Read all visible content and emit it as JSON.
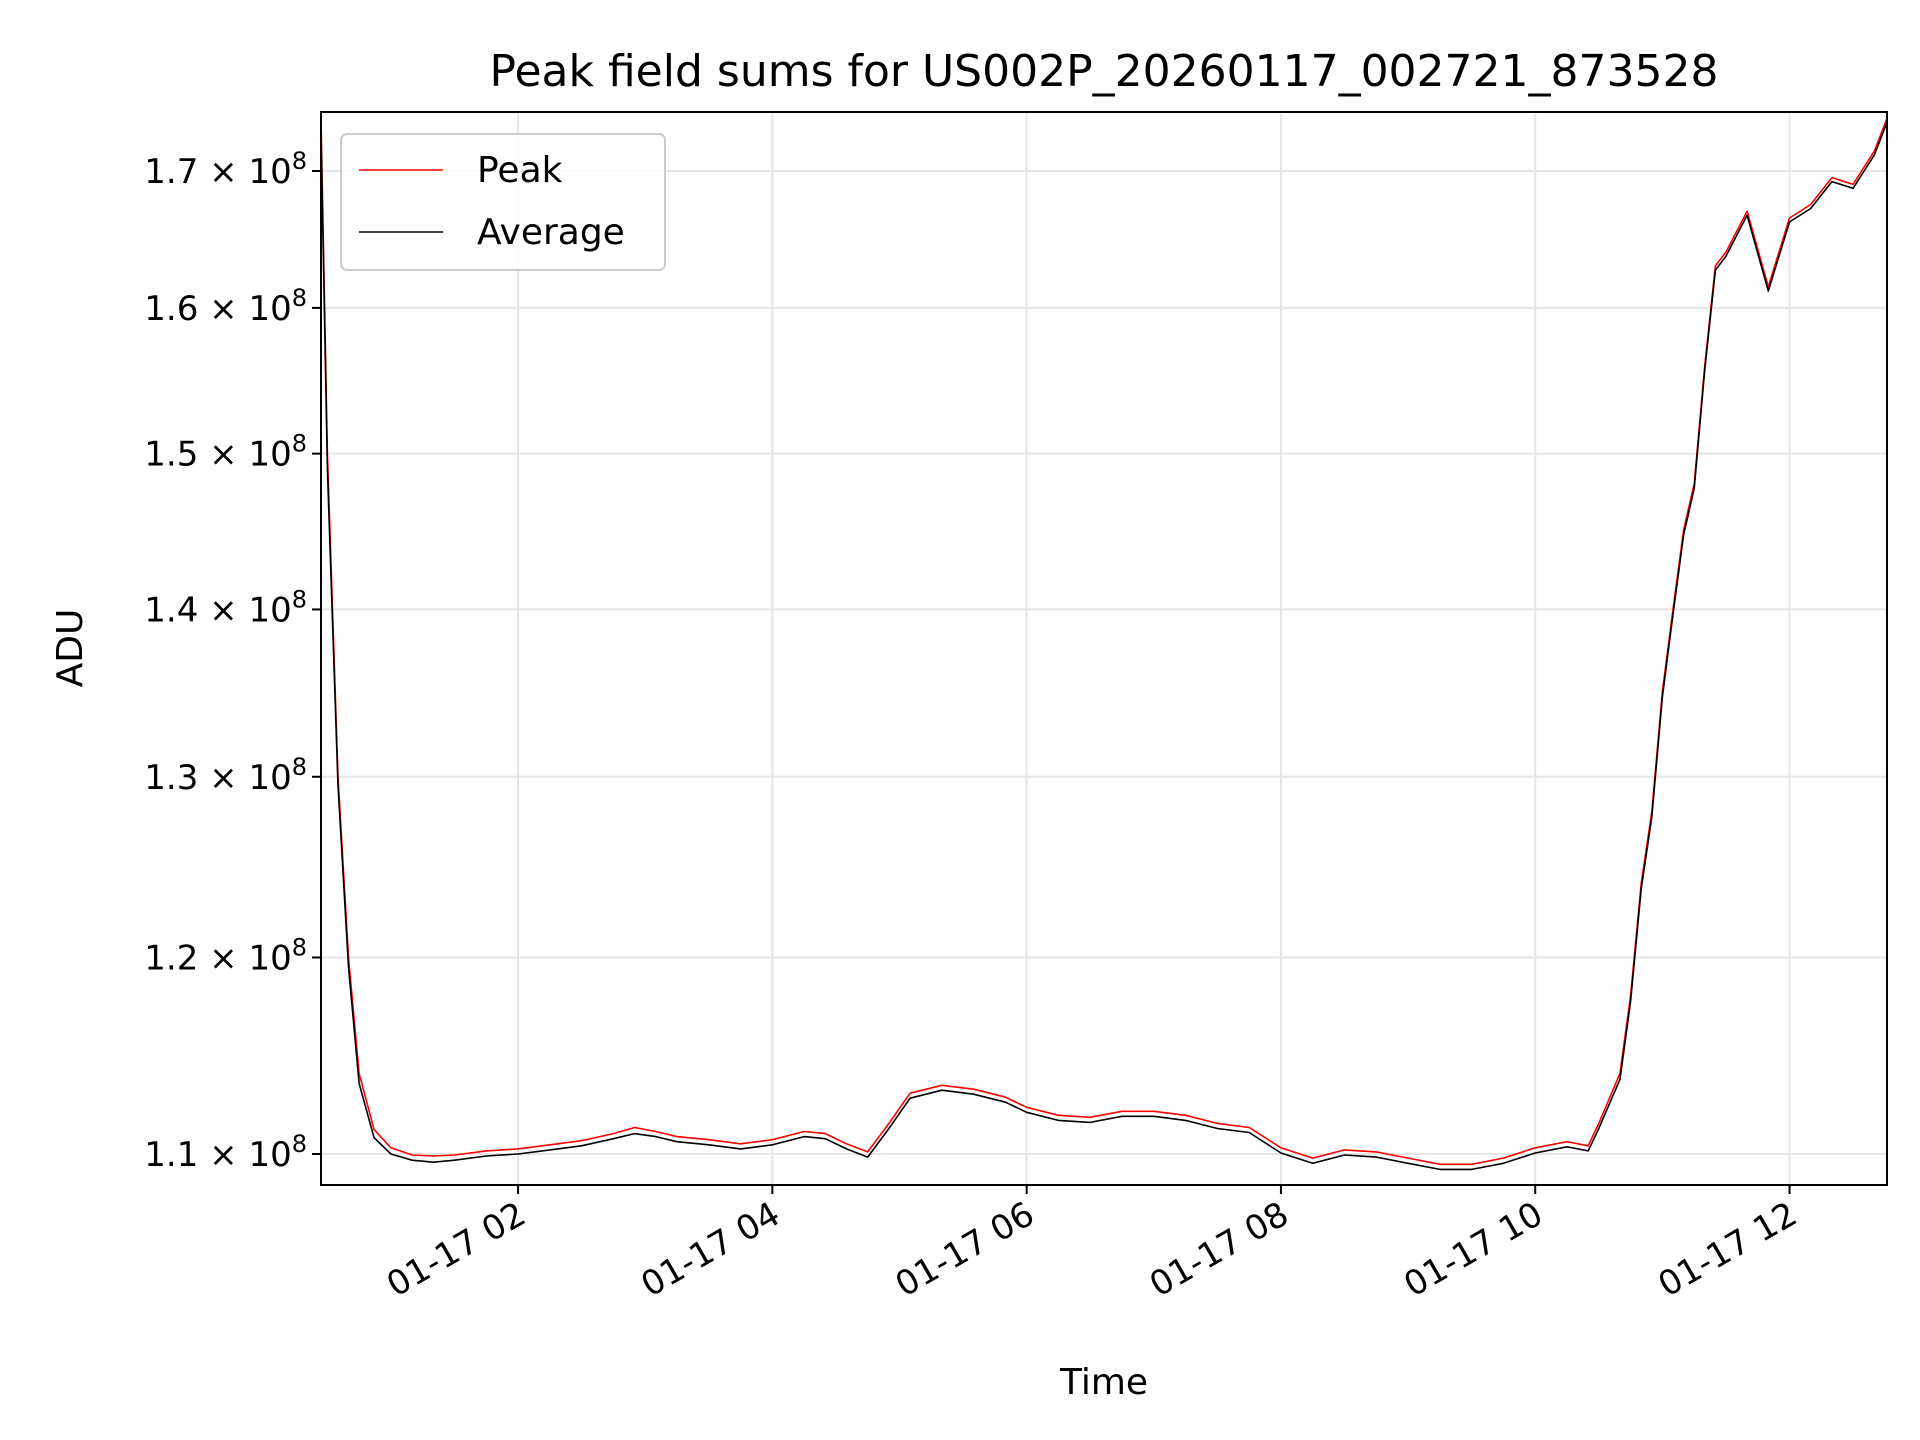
{
  "chart_data": {
    "type": "line",
    "title": "Peak field sums for US002P_20260117_002721_873528",
    "xlabel": "Time",
    "ylabel": "ADU",
    "x_ticks": [
      "01-17 02",
      "01-17 04",
      "01-17 06",
      "01-17 08",
      "01-17 10",
      "01-17 12"
    ],
    "y_ticks": [
      {
        "value": 110000000,
        "mantissa": "1.1",
        "base": "10",
        "exp": "8"
      },
      {
        "value": 120000000,
        "mantissa": "1.2",
        "base": "10",
        "exp": "8"
      },
      {
        "value": 130000000,
        "mantissa": "1.3",
        "base": "10",
        "exp": "8"
      },
      {
        "value": 140000000,
        "mantissa": "1.4",
        "base": "10",
        "exp": "8"
      },
      {
        "value": 150000000,
        "mantissa": "1.5",
        "base": "10",
        "exp": "8"
      },
      {
        "value": 160000000,
        "mantissa": "1.6",
        "base": "10",
        "exp": "8"
      },
      {
        "value": 170000000,
        "mantissa": "1.7",
        "base": "10",
        "exp": "8"
      }
    ],
    "y_scale": "log",
    "xlim": [
      "2026-01-17 00:27",
      "2026-01-17 12:46"
    ],
    "ylim": [
      108500000,
      174500000
    ],
    "grid": true,
    "legend_position": "upper-left",
    "series": [
      {
        "name": "Peak",
        "color": "#ff0000",
        "points": [
          [
            "2026-01-17 00:27",
            174000000
          ],
          [
            "2026-01-17 00:30",
            150000000
          ],
          [
            "2026-01-17 00:35",
            130000000
          ],
          [
            "2026-01-17 00:40",
            120000000
          ],
          [
            "2026-01-17 00:45",
            114000000
          ],
          [
            "2026-01-17 00:52",
            111200000
          ],
          [
            "2026-01-17 01:00",
            110300000
          ],
          [
            "2026-01-17 01:10",
            109950000
          ],
          [
            "2026-01-17 01:20",
            109900000
          ],
          [
            "2026-01-17 01:30",
            109950000
          ],
          [
            "2026-01-17 01:45",
            110150000
          ],
          [
            "2026-01-17 02:00",
            110250000
          ],
          [
            "2026-01-17 02:15",
            110450000
          ],
          [
            "2026-01-17 02:30",
            110650000
          ],
          [
            "2026-01-17 02:45",
            111000000
          ],
          [
            "2026-01-17 02:55",
            111300000
          ],
          [
            "2026-01-17 03:05",
            111100000
          ],
          [
            "2026-01-17 03:15",
            110850000
          ],
          [
            "2026-01-17 03:30",
            110700000
          ],
          [
            "2026-01-17 03:45",
            110500000
          ],
          [
            "2026-01-17 04:00",
            110700000
          ],
          [
            "2026-01-17 04:15",
            111100000
          ],
          [
            "2026-01-17 04:25",
            111000000
          ],
          [
            "2026-01-17 04:35",
            110500000
          ],
          [
            "2026-01-17 04:45",
            110100000
          ],
          [
            "2026-01-17 04:55",
            111500000
          ],
          [
            "2026-01-17 05:05",
            113000000
          ],
          [
            "2026-01-17 05:20",
            113400000
          ],
          [
            "2026-01-17 05:35",
            113200000
          ],
          [
            "2026-01-17 05:50",
            112800000
          ],
          [
            "2026-01-17 06:00",
            112300000
          ],
          [
            "2026-01-17 06:15",
            111900000
          ],
          [
            "2026-01-17 06:30",
            111800000
          ],
          [
            "2026-01-17 06:45",
            112100000
          ],
          [
            "2026-01-17 07:00",
            112100000
          ],
          [
            "2026-01-17 07:15",
            111900000
          ],
          [
            "2026-01-17 07:30",
            111500000
          ],
          [
            "2026-01-17 07:45",
            111300000
          ],
          [
            "2026-01-17 08:00",
            110300000
          ],
          [
            "2026-01-17 08:15",
            109800000
          ],
          [
            "2026-01-17 08:30",
            110200000
          ],
          [
            "2026-01-17 08:45",
            110100000
          ],
          [
            "2026-01-17 09:00",
            109800000
          ],
          [
            "2026-01-17 09:15",
            109500000
          ],
          [
            "2026-01-17 09:30",
            109500000
          ],
          [
            "2026-01-17 09:45",
            109800000
          ],
          [
            "2026-01-17 10:00",
            110300000
          ],
          [
            "2026-01-17 10:15",
            110600000
          ],
          [
            "2026-01-17 10:25",
            110400000
          ],
          [
            "2026-01-17 10:30",
            111500000
          ],
          [
            "2026-01-17 10:40",
            114000000
          ],
          [
            "2026-01-17 10:45",
            118000000
          ],
          [
            "2026-01-17 10:50",
            124000000
          ],
          [
            "2026-01-17 10:55",
            128000000
          ],
          [
            "2026-01-17 11:00",
            135000000
          ],
          [
            "2026-01-17 11:05",
            140000000
          ],
          [
            "2026-01-17 11:10",
            145000000
          ],
          [
            "2026-01-17 11:15",
            148000000
          ],
          [
            "2026-01-17 11:20",
            156000000
          ],
          [
            "2026-01-17 11:25",
            163000000
          ],
          [
            "2026-01-17 11:30",
            164000000
          ],
          [
            "2026-01-17 11:40",
            167000000
          ],
          [
            "2026-01-17 11:50",
            161500000
          ],
          [
            "2026-01-17 12:00",
            166500000
          ],
          [
            "2026-01-17 12:10",
            167500000
          ],
          [
            "2026-01-17 12:20",
            169500000
          ],
          [
            "2026-01-17 12:30",
            169000000
          ],
          [
            "2026-01-17 12:40",
            171500000
          ],
          [
            "2026-01-17 12:46",
            174000000
          ]
        ]
      },
      {
        "name": "Average",
        "color": "#000000",
        "points": [
          [
            "2026-01-17 00:27",
            173000000
          ],
          [
            "2026-01-17 00:30",
            149000000
          ],
          [
            "2026-01-17 00:35",
            129500000
          ],
          [
            "2026-01-17 00:40",
            119500000
          ],
          [
            "2026-01-17 00:45",
            113500000
          ],
          [
            "2026-01-17 00:52",
            110800000
          ],
          [
            "2026-01-17 01:00",
            110000000
          ],
          [
            "2026-01-17 01:10",
            109700000
          ],
          [
            "2026-01-17 01:20",
            109600000
          ],
          [
            "2026-01-17 01:30",
            109700000
          ],
          [
            "2026-01-17 01:45",
            109900000
          ],
          [
            "2026-01-17 02:00",
            110000000
          ],
          [
            "2026-01-17 02:15",
            110200000
          ],
          [
            "2026-01-17 02:30",
            110400000
          ],
          [
            "2026-01-17 02:45",
            110750000
          ],
          [
            "2026-01-17 02:55",
            111000000
          ],
          [
            "2026-01-17 03:05",
            110850000
          ],
          [
            "2026-01-17 03:15",
            110600000
          ],
          [
            "2026-01-17 03:30",
            110450000
          ],
          [
            "2026-01-17 03:45",
            110250000
          ],
          [
            "2026-01-17 04:00",
            110450000
          ],
          [
            "2026-01-17 04:15",
            110850000
          ],
          [
            "2026-01-17 04:25",
            110750000
          ],
          [
            "2026-01-17 04:35",
            110250000
          ],
          [
            "2026-01-17 04:45",
            109850000
          ],
          [
            "2026-01-17 04:55",
            111250000
          ],
          [
            "2026-01-17 05:05",
            112750000
          ],
          [
            "2026-01-17 05:20",
            113150000
          ],
          [
            "2026-01-17 05:35",
            112950000
          ],
          [
            "2026-01-17 05:50",
            112550000
          ],
          [
            "2026-01-17 06:00",
            112050000
          ],
          [
            "2026-01-17 06:15",
            111650000
          ],
          [
            "2026-01-17 06:30",
            111550000
          ],
          [
            "2026-01-17 06:45",
            111850000
          ],
          [
            "2026-01-17 07:00",
            111850000
          ],
          [
            "2026-01-17 07:15",
            111650000
          ],
          [
            "2026-01-17 07:30",
            111250000
          ],
          [
            "2026-01-17 07:45",
            111050000
          ],
          [
            "2026-01-17 08:00",
            110050000
          ],
          [
            "2026-01-17 08:15",
            109550000
          ],
          [
            "2026-01-17 08:30",
            109950000
          ],
          [
            "2026-01-17 08:45",
            109850000
          ],
          [
            "2026-01-17 09:00",
            109550000
          ],
          [
            "2026-01-17 09:15",
            109250000
          ],
          [
            "2026-01-17 09:30",
            109250000
          ],
          [
            "2026-01-17 09:45",
            109550000
          ],
          [
            "2026-01-17 10:00",
            110050000
          ],
          [
            "2026-01-17 10:15",
            110350000
          ],
          [
            "2026-01-17 10:25",
            110150000
          ],
          [
            "2026-01-17 10:30",
            111250000
          ],
          [
            "2026-01-17 10:40",
            113700000
          ],
          [
            "2026-01-17 10:45",
            117700000
          ],
          [
            "2026-01-17 10:50",
            123700000
          ],
          [
            "2026-01-17 10:55",
            127700000
          ],
          [
            "2026-01-17 11:00",
            134700000
          ],
          [
            "2026-01-17 11:05",
            139700000
          ],
          [
            "2026-01-17 11:10",
            144700000
          ],
          [
            "2026-01-17 11:15",
            147700000
          ],
          [
            "2026-01-17 11:20",
            155700000
          ],
          [
            "2026-01-17 11:25",
            162700000
          ],
          [
            "2026-01-17 11:30",
            163700000
          ],
          [
            "2026-01-17 11:40",
            166700000
          ],
          [
            "2026-01-17 11:50",
            161200000
          ],
          [
            "2026-01-17 12:00",
            166200000
          ],
          [
            "2026-01-17 12:10",
            167200000
          ],
          [
            "2026-01-17 12:20",
            169200000
          ],
          [
            "2026-01-17 12:30",
            168700000
          ],
          [
            "2026-01-17 12:40",
            171200000
          ],
          [
            "2026-01-17 12:46",
            173700000
          ]
        ]
      }
    ]
  }
}
